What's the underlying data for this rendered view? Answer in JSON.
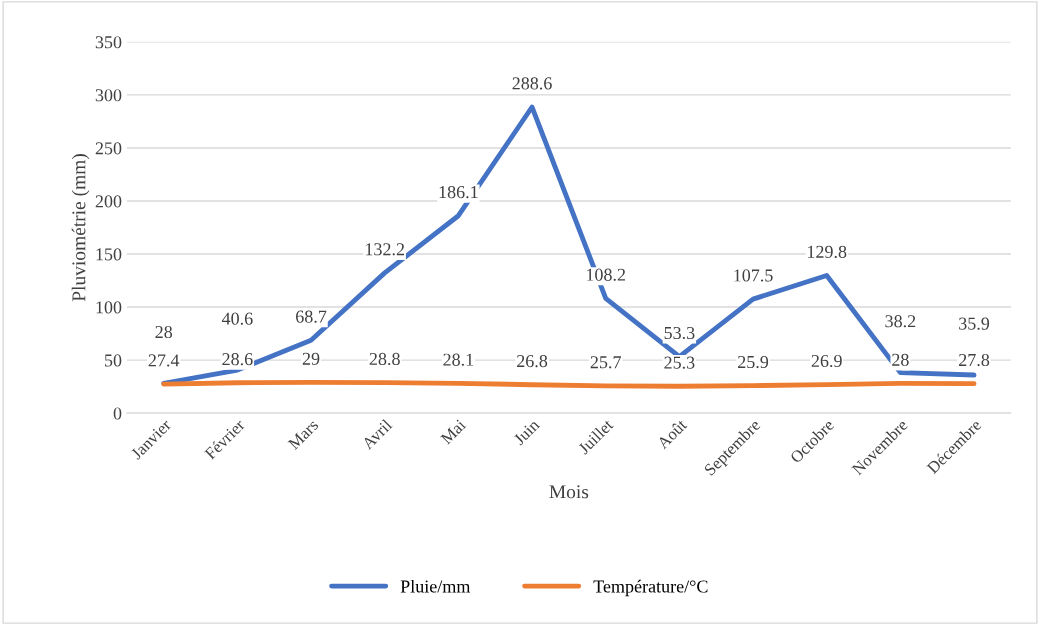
{
  "chart_data": {
    "type": "line",
    "xlabel": "Mois",
    "ylabel": "Pluviométrie (mm)",
    "categories": [
      "Janvier",
      "Février",
      "Mars",
      "Avril",
      "Mai",
      "Juin",
      "Juillet",
      "Août",
      "Septembre",
      "Octobre",
      "Novembre",
      "Décembre"
    ],
    "series": [
      {
        "name": "Pluie/mm",
        "color": "#4472c4",
        "values": [
          28,
          40.6,
          68.7,
          132.2,
          186.1,
          288.6,
          108.2,
          53.3,
          107.5,
          129.8,
          38.2,
          35.9
        ]
      },
      {
        "name": "Température/°C",
        "color": "#ed7d31",
        "values": [
          27.4,
          28.6,
          29,
          28.8,
          28.1,
          26.8,
          25.7,
          25.3,
          25.9,
          26.9,
          28,
          27.8
        ]
      }
    ],
    "ylim": [
      0,
      350
    ],
    "yticks": [
      0,
      50,
      100,
      150,
      200,
      250,
      300,
      350
    ],
    "grid": "y",
    "legend": "bottom",
    "data_labels": true,
    "marker": "none",
    "line_style": "solid"
  }
}
